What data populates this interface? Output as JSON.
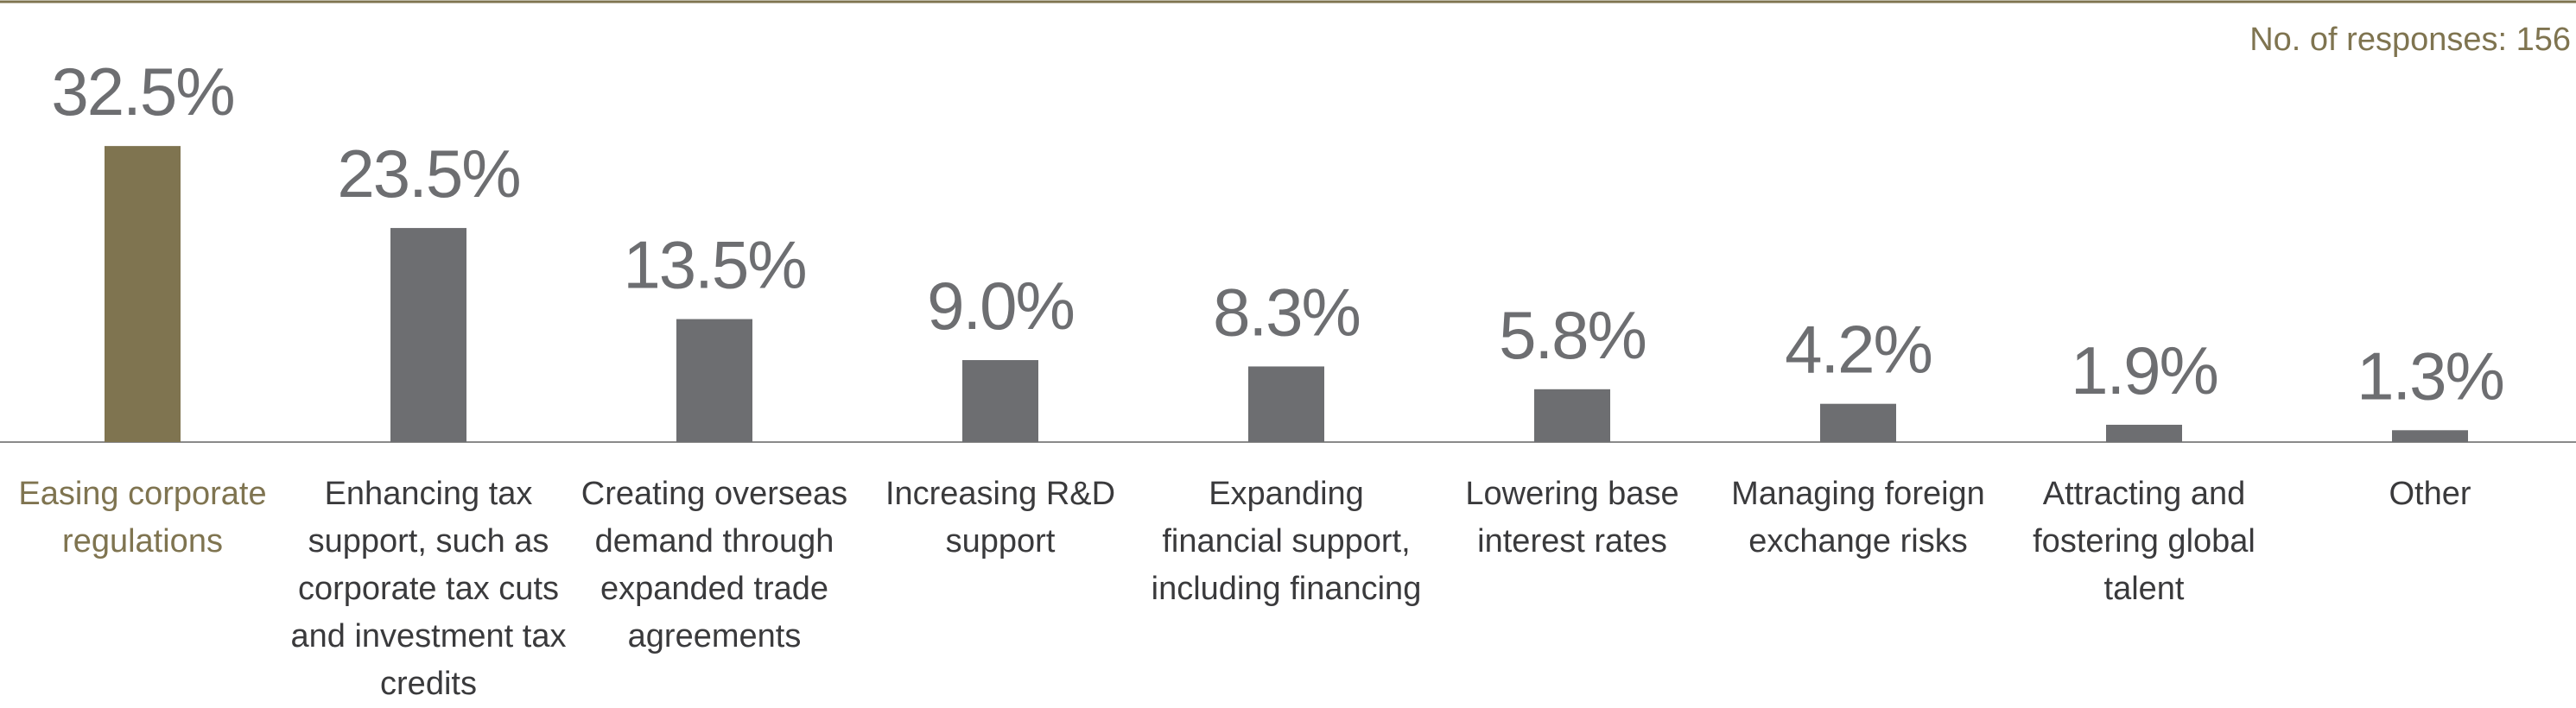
{
  "chart_data": {
    "type": "bar",
    "note": "No. of responses: 156",
    "categories": [
      "Easing corporate regulations",
      "Enhancing tax support, such as corporate tax cuts and investment tax credits",
      "Creating overseas demand through expanded trade agreements",
      "Increasing R&D support",
      "Expanding financial support, including financing",
      "Lowering base interest rates",
      "Managing foreign exchange risks",
      "Attracting and fostering global talent",
      "Other"
    ],
    "values": [
      32.5,
      23.5,
      13.5,
      9.0,
      8.3,
      5.8,
      4.2,
      1.9,
      1.3
    ],
    "value_labels": [
      "32.5%",
      "23.5%",
      "13.5%",
      "9.0%",
      "8.3%",
      "5.8%",
      "4.2%",
      "1.9%",
      "1.3%"
    ],
    "colors": [
      "#7f7450",
      "#6d6e71",
      "#6d6e71",
      "#6d6e71",
      "#6d6e71",
      "#6d6e71",
      "#6d6e71",
      "#6d6e71",
      "#6d6e71"
    ]
  }
}
